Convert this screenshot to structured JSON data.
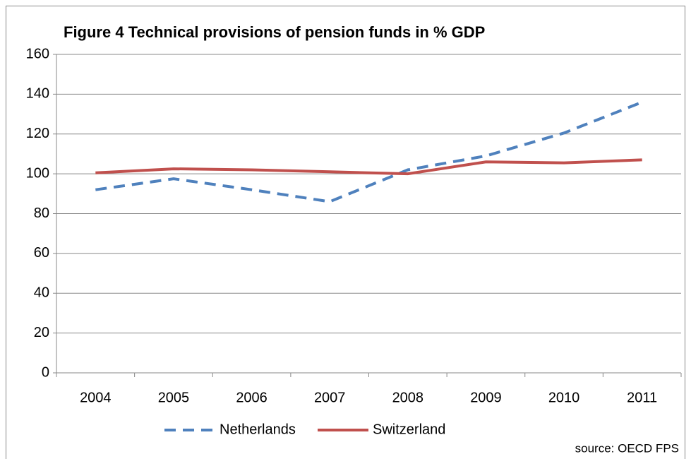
{
  "chart_data": {
    "type": "line",
    "title": "Figure 4 Technical provisions of pension funds in % GDP",
    "categories": [
      "2004",
      "2005",
      "2006",
      "2007",
      "2008",
      "2009",
      "2010",
      "2011"
    ],
    "series": [
      {
        "name": "Netherlands",
        "color": "#4f81bd",
        "style": "dashed",
        "values": [
          92,
          97.5,
          92,
          86,
          102,
          109,
          120.5,
          136
        ]
      },
      {
        "name": "Switzerland",
        "color": "#c0504d",
        "style": "solid",
        "values": [
          100.5,
          102.5,
          102,
          101,
          100,
          106,
          105.5,
          107
        ]
      }
    ],
    "ylim": [
      0,
      160
    ],
    "yticks": [
      0,
      20,
      40,
      60,
      80,
      100,
      120,
      140,
      160
    ],
    "grid": true,
    "legend": "bottom",
    "annotations": [
      "source: OECD FPS"
    ]
  }
}
